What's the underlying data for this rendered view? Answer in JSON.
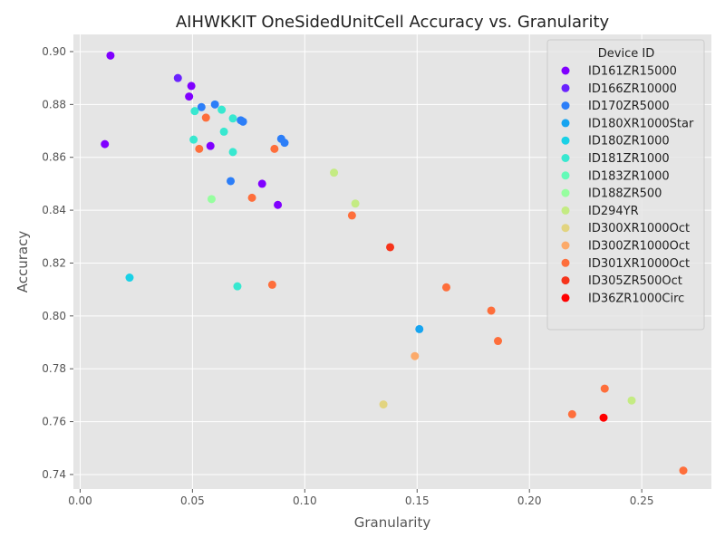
{
  "chart_data": {
    "type": "scatter",
    "title": "AIHWKKIT OneSidedUnitCell Accuracy vs. Granularity",
    "xlabel": "Granularity",
    "ylabel": "Accuracy",
    "xlim": [
      -0.003,
      0.281
    ],
    "ylim": [
      0.7345,
      0.9065
    ],
    "xticks": [
      0.0,
      0.05,
      0.1,
      0.15,
      0.2,
      0.25
    ],
    "xtick_labels": [
      "0.00",
      "0.05",
      "0.10",
      "0.15",
      "0.20",
      "0.25"
    ],
    "yticks": [
      0.74,
      0.76,
      0.78,
      0.8,
      0.82,
      0.84,
      0.86,
      0.88,
      0.9
    ],
    "ytick_labels": [
      "0.74",
      "0.76",
      "0.78",
      "0.80",
      "0.82",
      "0.84",
      "0.86",
      "0.88",
      "0.90"
    ],
    "grid": true,
    "legend_title": "Device ID",
    "legend_position": "top-right",
    "series": [
      {
        "name": "ID161ZR15000",
        "color": "#8000ff",
        "x": [
          0.0135,
          0.0495,
          0.0485,
          0.011,
          0.058,
          0.081,
          0.088
        ],
        "y": [
          0.8985,
          0.887,
          0.883,
          0.865,
          0.8643,
          0.85,
          0.842
        ]
      },
      {
        "name": "ID166ZR10000",
        "color": "#6a23fe",
        "x": [
          0.0435
        ],
        "y": [
          0.89
        ]
      },
      {
        "name": "ID170ZR5000",
        "color": "#2c7ef8",
        "x": [
          0.054,
          0.06,
          0.0715,
          0.0725,
          0.0895,
          0.091,
          0.067
        ],
        "y": [
          0.879,
          0.88,
          0.874,
          0.8735,
          0.867,
          0.8655,
          0.851
        ]
      },
      {
        "name": "ID180XR1000Star",
        "color": "#16a4f0",
        "x": [
          0.151
        ],
        "y": [
          0.795
        ]
      },
      {
        "name": "ID180ZR1000",
        "color": "#1ad1e6",
        "x": [
          0.022
        ],
        "y": [
          0.8145
        ]
      },
      {
        "name": "ID181ZR1000",
        "color": "#38e8d0",
        "x": [
          0.051,
          0.063,
          0.068,
          0.064,
          0.0505,
          0.068,
          0.07
        ],
        "y": [
          0.8775,
          0.878,
          0.8747,
          0.8697,
          0.8667,
          0.862,
          0.8112
        ]
      },
      {
        "name": "ID183ZR1000",
        "color": "#64fbb8",
        "x": [],
        "y": []
      },
      {
        "name": "ID188ZR500",
        "color": "#96fe9f",
        "x": [
          0.0585
        ],
        "y": [
          0.8442
        ]
      },
      {
        "name": "ID294YR",
        "color": "#c4eb83",
        "x": [
          0.113,
          0.1225,
          0.2455
        ],
        "y": [
          0.8542,
          0.8425,
          0.768
        ]
      },
      {
        "name": "ID300XR1000Oct",
        "color": "#e2d480",
        "x": [
          0.135
        ],
        "y": [
          0.7665
        ]
      },
      {
        "name": "ID300ZR1000Oct",
        "color": "#fcaa6a",
        "x": [
          0.149
        ],
        "y": [
          0.7848
        ]
      },
      {
        "name": "ID301XR1000Oct",
        "color": "#fe6e3b",
        "x": [
          0.056,
          0.053,
          0.0865,
          0.0765,
          0.121,
          0.0855,
          0.163,
          0.183,
          0.186,
          0.2335,
          0.219,
          0.2685
        ],
        "y": [
          0.875,
          0.8632,
          0.8632,
          0.8447,
          0.838,
          0.8118,
          0.8108,
          0.802,
          0.7905,
          0.7725,
          0.7628,
          0.7415
        ]
      },
      {
        "name": "ID305ZR500Oct",
        "color": "#f6341b",
        "x": [
          0.138
        ],
        "y": [
          0.826
        ]
      },
      {
        "name": "ID36ZR1000Circ",
        "color": "#ff0000",
        "x": [
          0.233
        ],
        "y": [
          0.7615
        ]
      }
    ]
  }
}
